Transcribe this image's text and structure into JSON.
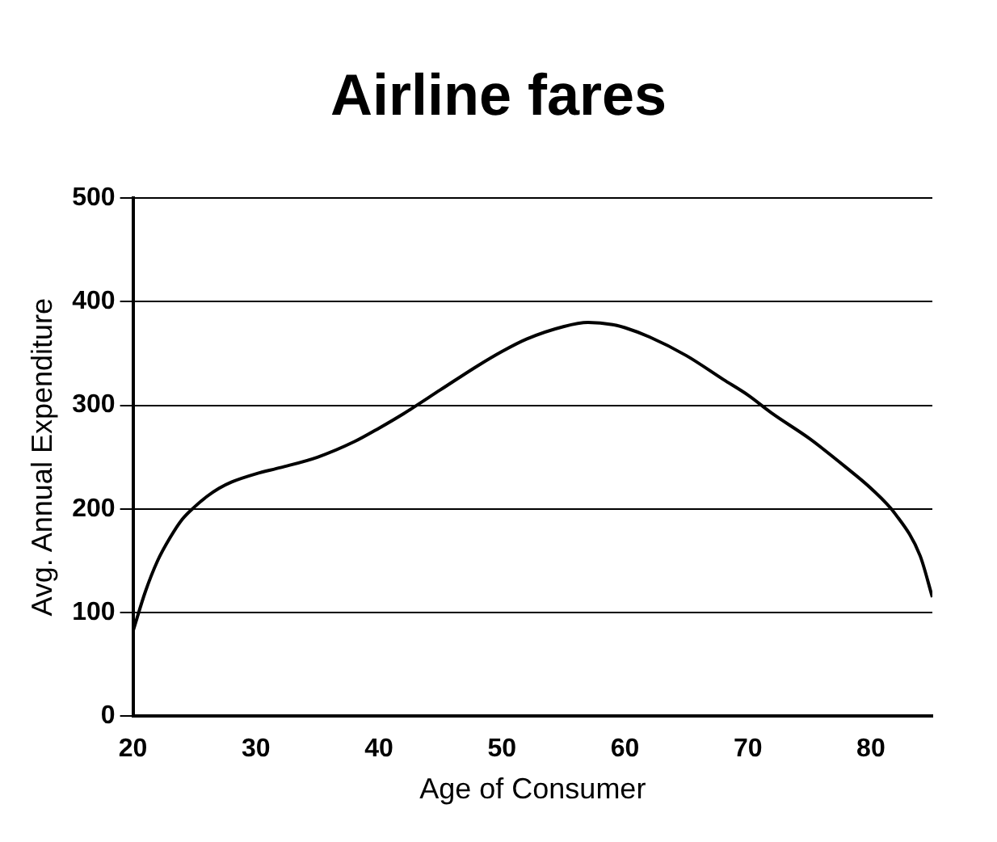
{
  "chart_data": {
    "type": "line",
    "title": "Airline fares",
    "xlabel": "Age of Consumer",
    "ylabel": "Avg. Annual Expenditure",
    "x": [
      20,
      21,
      22,
      23,
      24,
      25,
      26,
      27,
      28,
      30,
      32,
      35,
      38,
      40,
      42,
      45,
      48,
      50,
      52,
      55,
      57,
      59,
      60,
      62,
      65,
      68,
      70,
      72,
      75,
      78,
      80,
      82,
      84,
      85
    ],
    "series": [
      {
        "color": "#000000",
        "values": [
          82,
          120,
          150,
          172,
          190,
          202,
          212,
          220,
          226,
          234,
          240,
          250,
          265,
          278,
          292,
          315,
          338,
          352,
          364,
          376,
          380,
          378,
          375,
          366,
          348,
          325,
          310,
          292,
          268,
          240,
          220,
          195,
          155,
          115
        ]
      }
    ],
    "xlim": [
      20,
      85
    ],
    "xticks": [
      20,
      30,
      40,
      50,
      60,
      70,
      80
    ],
    "ylim": [
      0,
      500
    ],
    "yticks": [
      0,
      100,
      200,
      300,
      400,
      500
    ],
    "grid": "y",
    "legend": false,
    "marker": "none",
    "line_style": "solid"
  }
}
